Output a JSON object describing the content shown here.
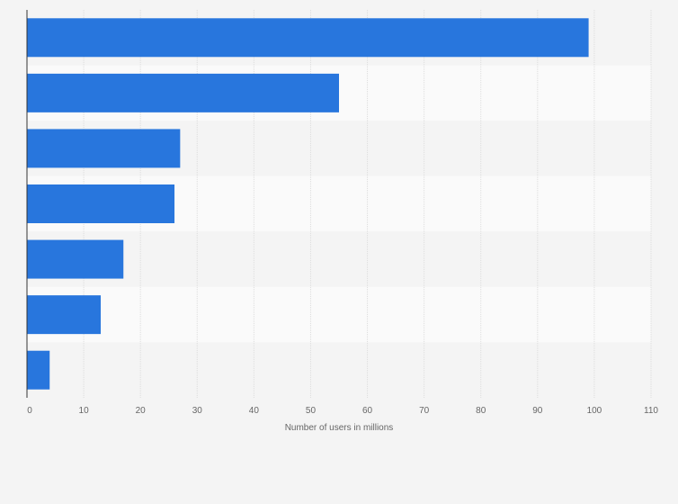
{
  "chart_data": {
    "type": "bar",
    "orientation": "horizontal",
    "title": "",
    "xlabel": "Number of users in millions",
    "ylabel": "",
    "categories": [
      "",
      "",
      "",
      "",
      "",
      "",
      ""
    ],
    "values": [
      99,
      55,
      27,
      26,
      17,
      13,
      4
    ],
    "xlim": [
      0,
      110
    ],
    "xticks": [
      0,
      10,
      20,
      30,
      40,
      50,
      60,
      70,
      80,
      90,
      100,
      110
    ],
    "grid": true,
    "bar_color": "#2876dd",
    "band_colors": [
      "#f4f4f4",
      "#fafafa"
    ],
    "gridline_color": "#dddddd",
    "axis_color": "#333333"
  }
}
